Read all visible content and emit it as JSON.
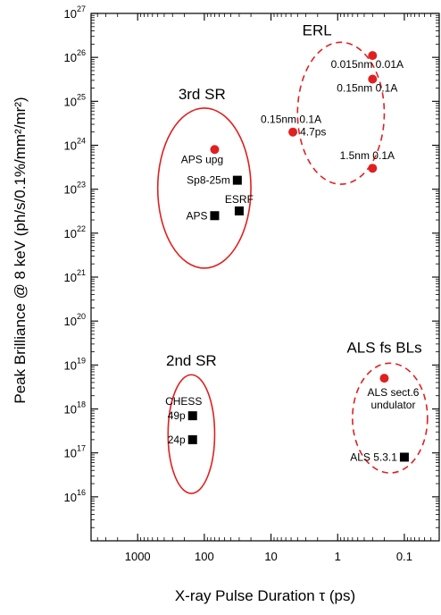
{
  "chart_data": {
    "type": "scatter",
    "xlabel": "X-ray Pulse Duration τ (ps)",
    "ylabel": "Peak Brilliance @ 8 keV (ph/s/0.1%/mm²/mr²)",
    "x_scale": "log",
    "x_reversed": true,
    "xlim": [
      5000,
      0.03
    ],
    "y_scale": "log",
    "ylim": [
      1000000000000000.0,
      1e+27
    ],
    "x_ticks": [
      {
        "value": 1000,
        "label": "1000"
      },
      {
        "value": 100,
        "label": "100"
      },
      {
        "value": 10,
        "label": "10"
      },
      {
        "value": 1,
        "label": "1"
      },
      {
        "value": 0.1,
        "label": "0.1"
      }
    ],
    "y_ticks": [
      {
        "exp": 16,
        "base": "10",
        "sup": "16"
      },
      {
        "exp": 17,
        "base": "10",
        "sup": "17"
      },
      {
        "exp": 18,
        "base": "10",
        "sup": "18"
      },
      {
        "exp": 19,
        "base": "10",
        "sup": "19"
      },
      {
        "exp": 20,
        "base": "10",
        "sup": "20"
      },
      {
        "exp": 21,
        "base": "10",
        "sup": "21"
      },
      {
        "exp": 22,
        "base": "10",
        "sup": "22"
      },
      {
        "exp": 23,
        "base": "10",
        "sup": "23"
      },
      {
        "exp": 24,
        "base": "10",
        "sup": "24"
      },
      {
        "exp": 25,
        "base": "10",
        "sup": "25"
      },
      {
        "exp": 26,
        "base": "10",
        "sup": "26"
      },
      {
        "exp": 27,
        "base": "10",
        "sup": "27"
      }
    ],
    "groups": [
      {
        "label": "ERL",
        "style": "dashed",
        "color": "#e02020",
        "x_range": [
          4,
          0.2
        ],
        "y_range": [
          1.3e+23,
          2.2e+26
        ]
      },
      {
        "label": "3rd SR",
        "style": "solid",
        "color": "#e02020",
        "x_range": [
          500,
          20
        ],
        "y_range": [
          1.6e+21,
          7e+24
        ]
      },
      {
        "label": "2nd SR",
        "style": "solid",
        "color": "#e02020",
        "x_range": [
          350,
          70
        ],
        "y_range": [
          1.2e+16,
          6e+18
        ]
      },
      {
        "label": "ALS fs BLs",
        "style": "dashed",
        "color": "#e02020",
        "x_range": [
          0.6,
          0.045
        ],
        "y_range": [
          3.5e+16,
          1.1e+19
        ]
      }
    ],
    "points": [
      {
        "label": "0.015nm 0.01A",
        "x": 0.3,
        "y": 1.1e+26,
        "marker": "circle",
        "color": "#e02020"
      },
      {
        "label": "0.15nm 0.1A",
        "x": 0.3,
        "y": 3.2e+25,
        "marker": "circle",
        "color": "#e02020"
      },
      {
        "label": "0.15nm 0.1A",
        "label2": "4.7ps",
        "x": 4.7,
        "y": 2e+24,
        "marker": "circle",
        "color": "#e02020"
      },
      {
        "label": "1.5nm 0.1A",
        "x": 0.3,
        "y": 3e+23,
        "marker": "circle",
        "color": "#e02020"
      },
      {
        "label": "APS upg",
        "x": 70,
        "y": 8e+23,
        "marker": "circle",
        "color": "#e02020"
      },
      {
        "label": "Sp8-25m",
        "x": 32,
        "y": 1.6e+23,
        "marker": "square",
        "color": "#000000"
      },
      {
        "label": "ESRF",
        "x": 30,
        "y": 3.2e+22,
        "marker": "square",
        "color": "#000000"
      },
      {
        "label": "APS",
        "x": 70,
        "y": 2.5e+22,
        "marker": "square",
        "color": "#000000"
      },
      {
        "label": "CHESS",
        "label2": "49p",
        "x": 150,
        "y": 7e+17,
        "marker": "square",
        "color": "#000000"
      },
      {
        "label": "24p",
        "x": 150,
        "y": 2e+17,
        "marker": "square",
        "color": "#000000"
      },
      {
        "label": "ALS sect.6",
        "label2": "undulator",
        "x": 0.2,
        "y": 5e+18,
        "marker": "circle",
        "color": "#e02020"
      },
      {
        "label": "ALS 5.3.1",
        "x": 0.1,
        "y": 8e+16,
        "marker": "square",
        "color": "#000000"
      }
    ]
  }
}
